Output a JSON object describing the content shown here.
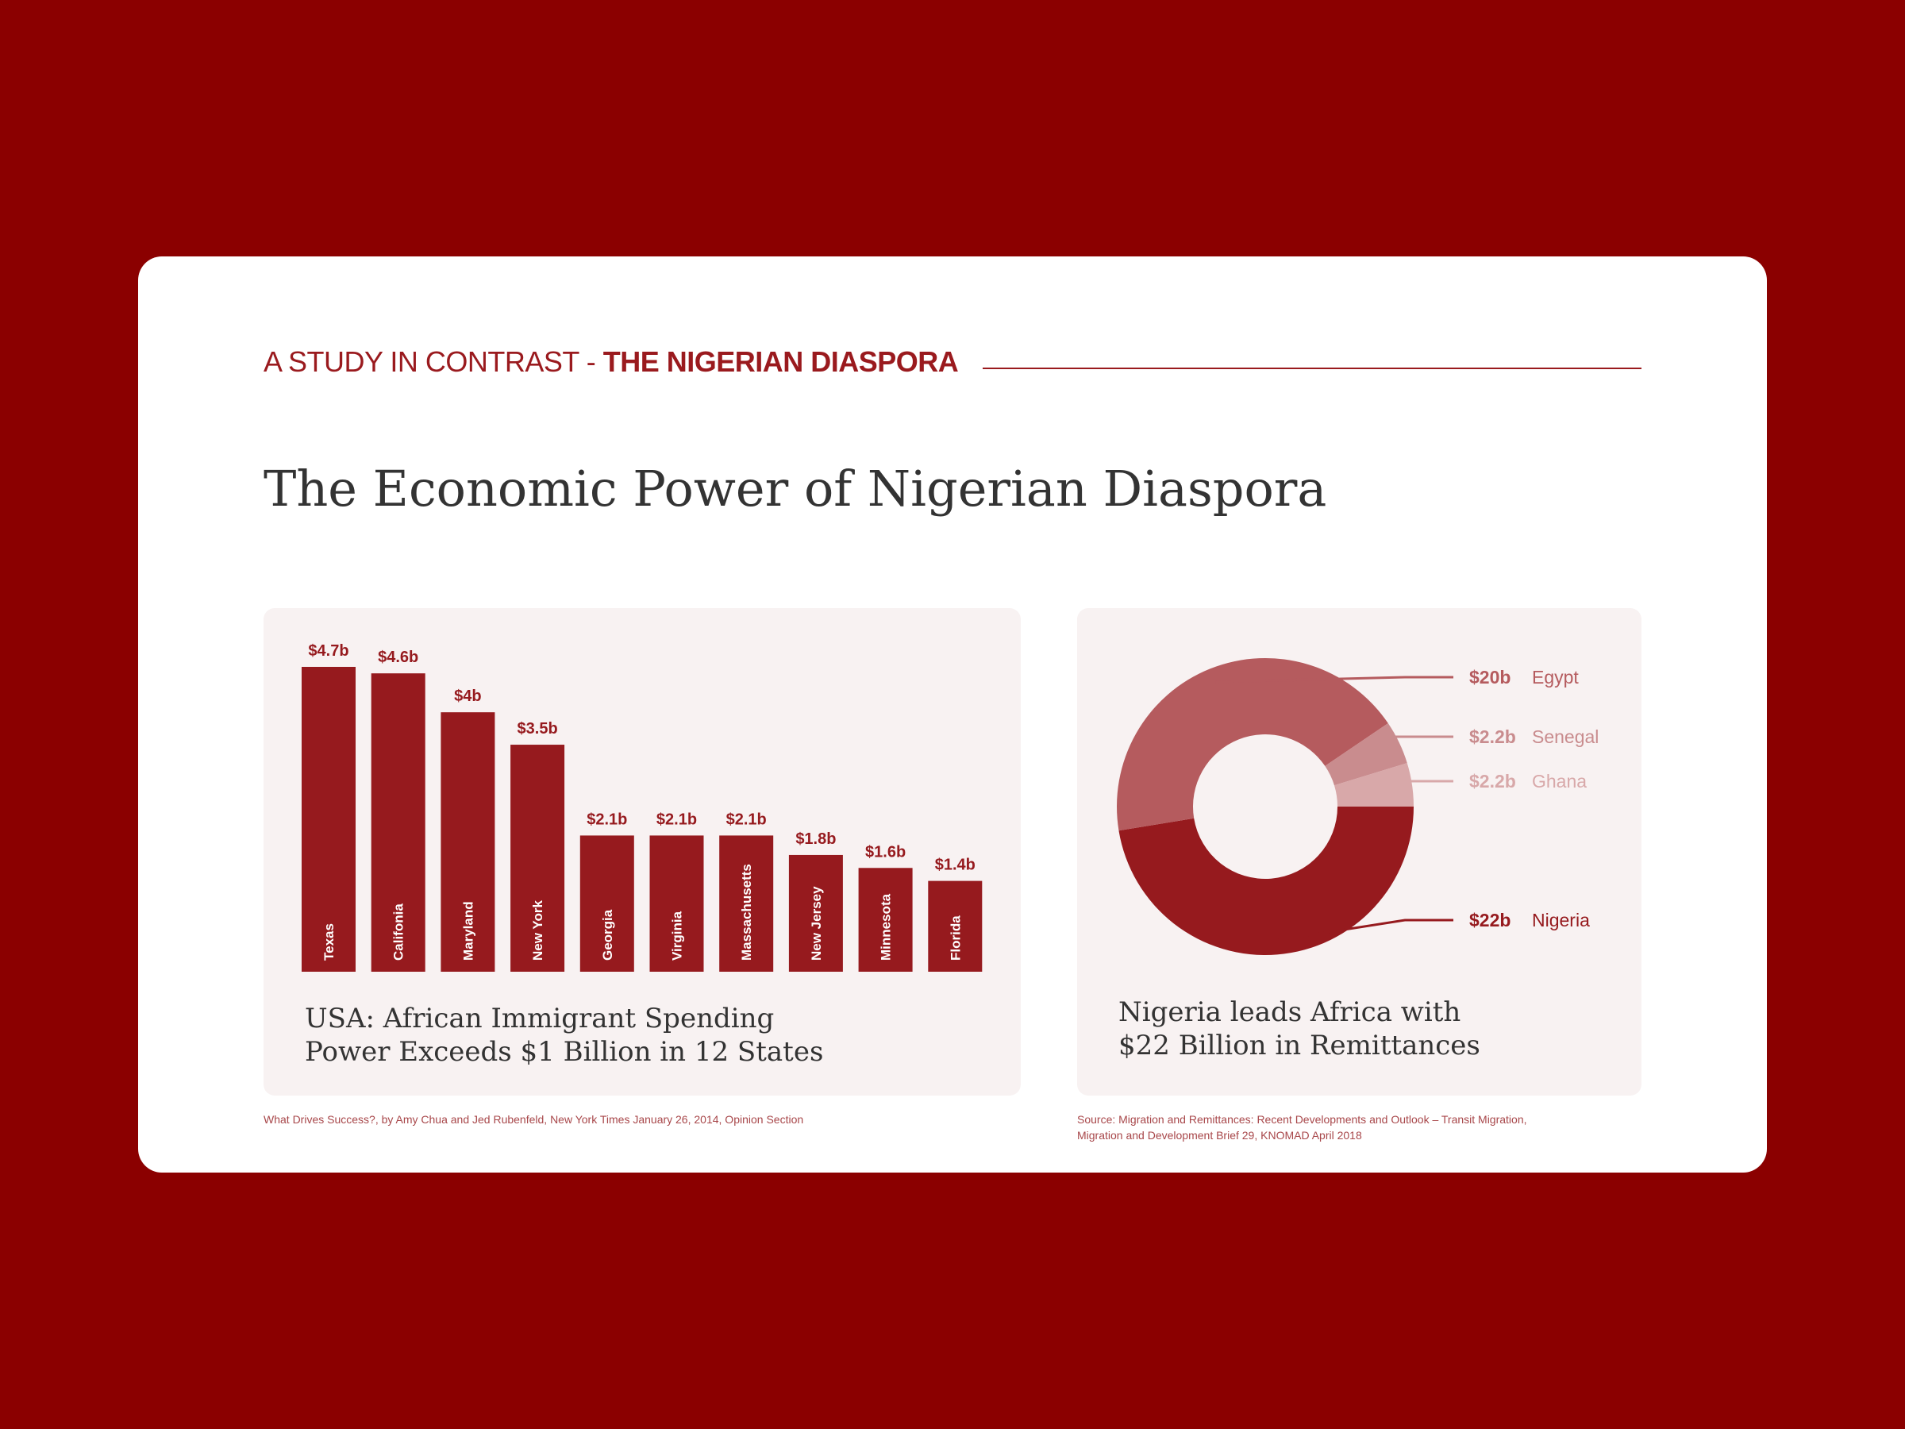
{
  "header": {
    "eyebrow_light": "A STUDY IN CONTRAST - ",
    "eyebrow_bold": "THE NIGERIAN DIASPORA",
    "title": "The Economic Power of Nigerian Diaspora"
  },
  "left_panel": {
    "title_line1": "USA: African Immigrant Spending",
    "title_line2": "Power Exceeds $1 Billion in 12 States",
    "source": "What Drives Success?, by Amy Chua and Jed Rubenfeld, New York Times January 26, 2014, Opinion Section"
  },
  "right_panel": {
    "title_line1": "Nigeria leads Africa with",
    "title_line2": "$22 Billion in Remittances",
    "source_line1": "Source: Migration and Remittances: Recent Developments and Outlook – Transit Migration,",
    "source_line2": "Migration and Development Brief 29, KNOMAD April 2018"
  },
  "colors": {
    "background": "#8b0000",
    "accent": "#9a1a1e",
    "bar": "#961a1e",
    "panel": "#f8f2f2"
  },
  "chart_data": [
    {
      "type": "bar",
      "categories": [
        "Texas",
        "Califonia",
        "Maryland",
        "New York",
        "Georgia",
        "Virginia",
        "Massachusetts",
        "New Jersey",
        "Minnesota",
        "Florida"
      ],
      "values": [
        4.7,
        4.6,
        4.0,
        3.5,
        2.1,
        2.1,
        2.1,
        1.8,
        1.6,
        1.4
      ],
      "value_labels": [
        "$4.7b",
        "$4.6b",
        "$4b",
        "$3.5b",
        "$2.1b",
        "$2.1b",
        "$2.1b",
        "$1.8b",
        "$1.6b",
        "$1.4b"
      ],
      "title": "USA: African Immigrant Spending Power Exceeds $1 Billion in 12 States",
      "xlabel": "",
      "ylabel": "",
      "ylim": [
        0,
        4.7
      ],
      "grid": false
    },
    {
      "type": "pie",
      "style": "donut",
      "title": "Nigeria leads Africa with $22 Billion in Remittances",
      "slices": [
        {
          "label": "Nigeria",
          "value": 22,
          "value_label": "$22b",
          "color": "#961a1e",
          "text_color": "#961a1e"
        },
        {
          "label": "Egypt",
          "value": 20,
          "value_label": "$20b",
          "color": "#b55b5e",
          "text_color": "#b55b5e"
        },
        {
          "label": "Senegal",
          "value": 2.2,
          "value_label": "$2.2b",
          "color": "#c98c8e",
          "text_color": "#c98c8e"
        },
        {
          "label": "Ghana",
          "value": 2.2,
          "value_label": "$2.2b",
          "color": "#d8a8a9",
          "text_color": "#d8a8a9"
        }
      ]
    }
  ]
}
